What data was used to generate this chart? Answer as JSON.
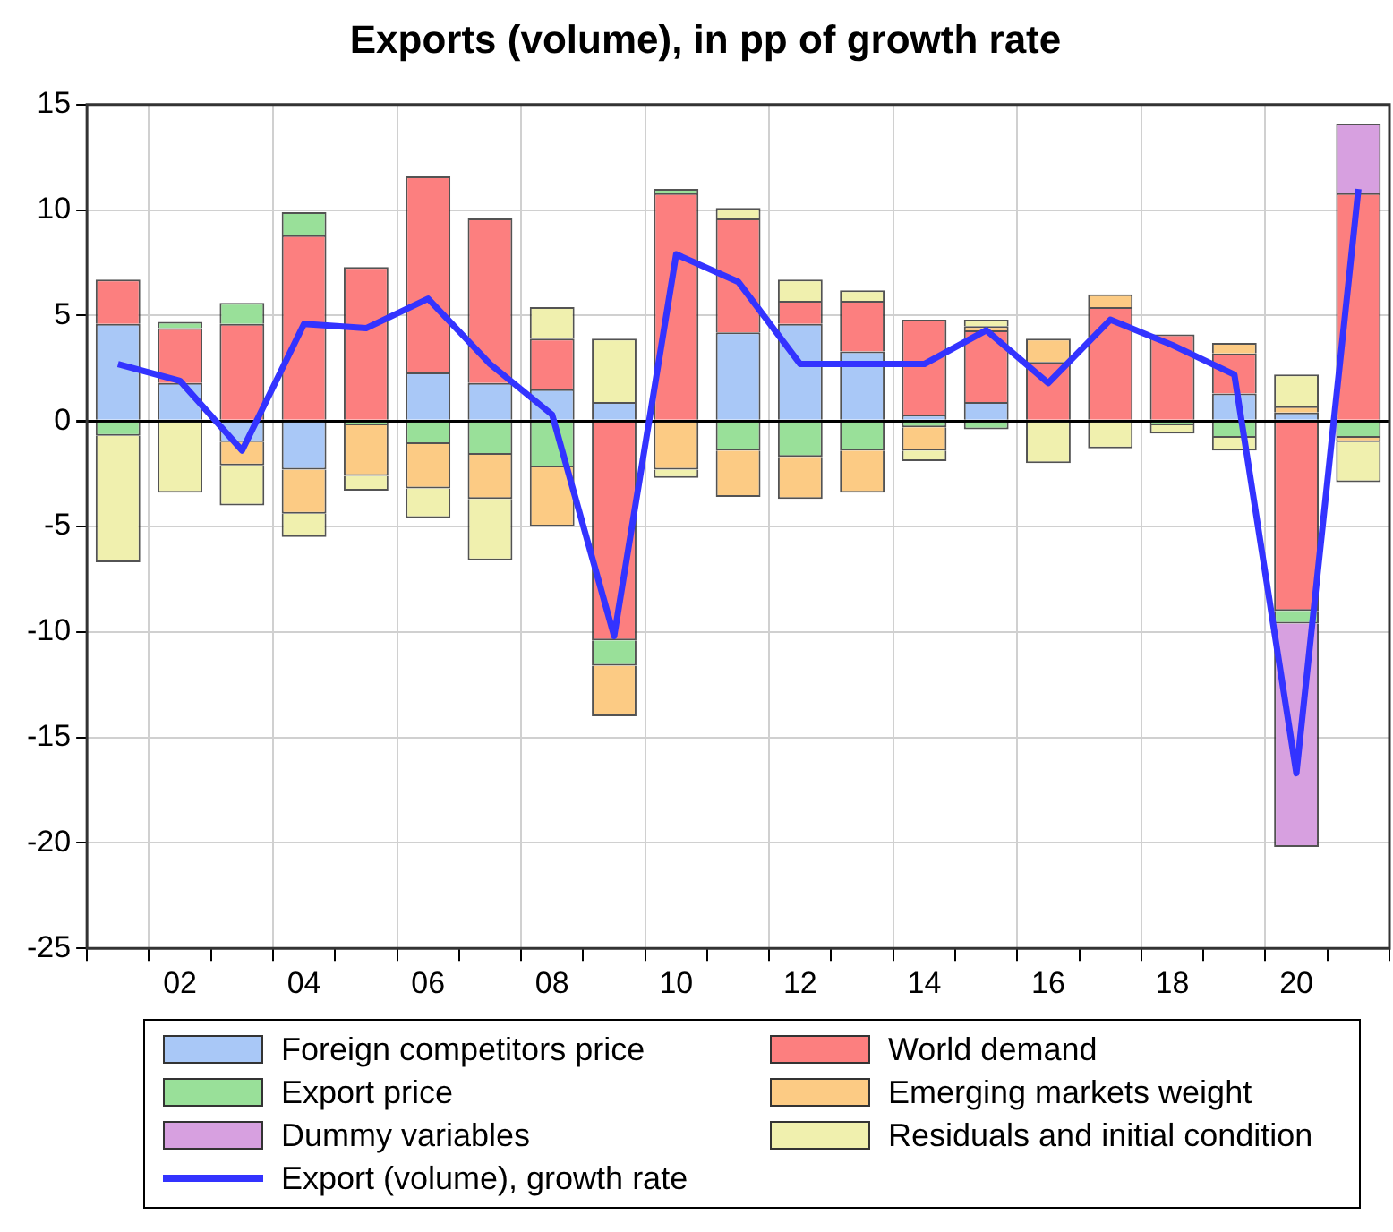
{
  "chart_data": {
    "type": "bar",
    "title": "Exports (volume), in pp of growth rate",
    "stacked": true,
    "categories": [
      null,
      "02",
      null,
      "04",
      null,
      "06",
      null,
      "08",
      null,
      "10",
      null,
      "12",
      null,
      "14",
      null,
      "16",
      null,
      "18",
      null,
      "20",
      null
    ],
    "ylim": [
      -25,
      15
    ],
    "yticks": [
      -25,
      -20,
      -15,
      -10,
      -5,
      0,
      5,
      10,
      15
    ],
    "grid": true,
    "legend": "bottom",
    "series": [
      {
        "name": "Foreign competitors price",
        "color": "#a9c8f7",
        "values": [
          4.6,
          1.8,
          -1.0,
          -2.3,
          null,
          2.3,
          1.8,
          1.5,
          0.9,
          null,
          4.2,
          4.6,
          3.3,
          0.3,
          0.9,
          null,
          null,
          null,
          1.3,
          0.4,
          null
        ]
      },
      {
        "name": "World demand",
        "color": "#fc7f7f",
        "values": [
          2.1,
          2.6,
          4.6,
          8.8,
          7.3,
          9.3,
          7.8,
          2.4,
          -10.4,
          10.8,
          5.4,
          1.1,
          2.4,
          4.5,
          3.4,
          2.8,
          5.4,
          4.1,
          1.9,
          -9.0,
          10.8
        ]
      },
      {
        "name": "Export price",
        "color": "#99e099",
        "values": [
          -0.7,
          0.3,
          1.0,
          1.1,
          -0.2,
          -1.1,
          -1.6,
          -2.2,
          -1.2,
          0.2,
          -1.4,
          -1.7,
          -1.4,
          -0.3,
          -0.4,
          null,
          null,
          -0.2,
          -0.8,
          -0.6,
          -0.8
        ]
      },
      {
        "name": "Emerging markets weight",
        "color": "#fccb84",
        "values": [
          null,
          null,
          -1.1,
          -2.1,
          -2.4,
          -2.1,
          -2.1,
          -2.8,
          -2.4,
          -2.3,
          -2.2,
          -2.0,
          -2.0,
          -1.1,
          0.2,
          1.1,
          0.6,
          null,
          0.5,
          0.3,
          -0.2
        ]
      },
      {
        "name": "Dummy variables",
        "color": "#d7a0e0",
        "values": [
          null,
          null,
          null,
          null,
          null,
          null,
          null,
          null,
          null,
          null,
          null,
          null,
          null,
          null,
          null,
          null,
          null,
          null,
          null,
          -10.6,
          3.3
        ]
      },
      {
        "name": "Residuals and initial condition",
        "color": "#f0f0ae",
        "values": [
          -6.0,
          -3.4,
          -1.9,
          -1.1,
          -0.7,
          -1.4,
          -2.9,
          1.5,
          3.0,
          -0.4,
          0.5,
          1.0,
          0.5,
          -0.5,
          0.3,
          -2.0,
          -1.3,
          -0.4,
          -0.6,
          1.5,
          -1.9
        ]
      },
      {
        "name": "Export (volume), growth rate",
        "type": "line",
        "color": "#3333ff",
        "marker": "none",
        "values": [
          2.7,
          1.9,
          -1.4,
          4.6,
          4.4,
          5.8,
          2.7,
          0.3,
          -10.2,
          7.9,
          6.6,
          2.7,
          2.7,
          2.7,
          4.3,
          1.8,
          4.8,
          3.6,
          2.2,
          -16.7,
          11.0
        ]
      }
    ]
  }
}
